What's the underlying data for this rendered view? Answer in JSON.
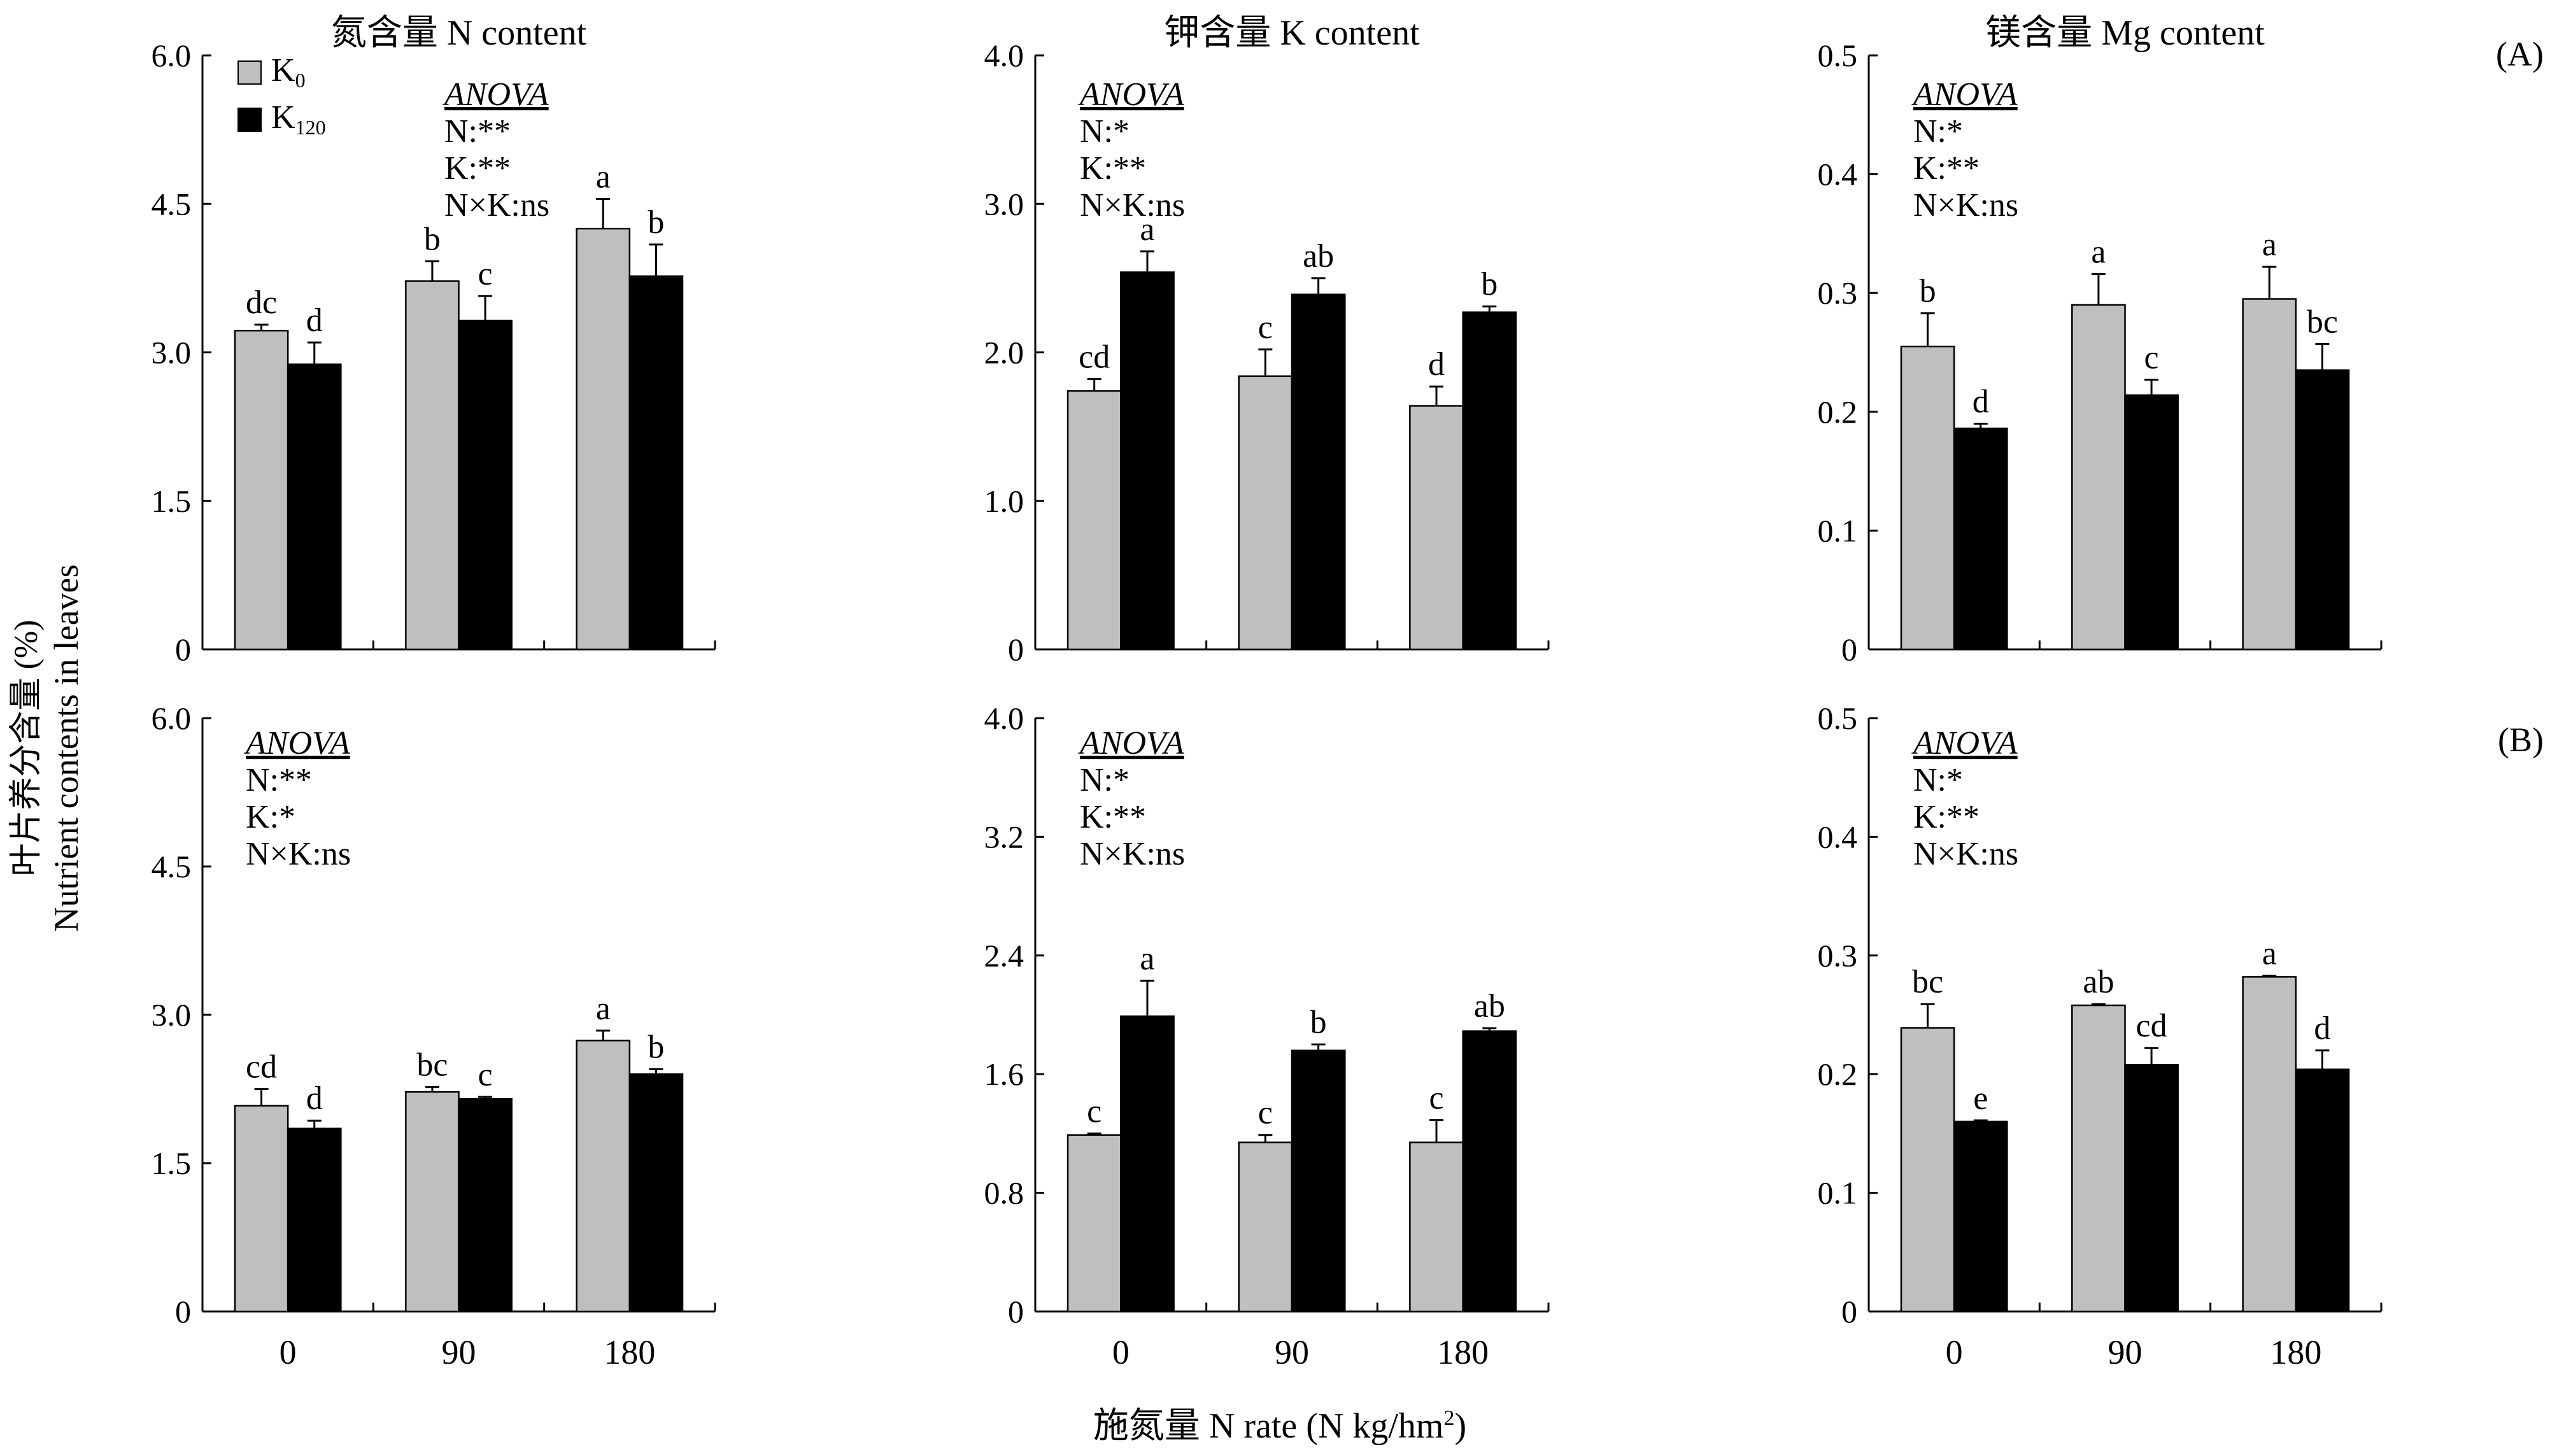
{
  "figure": {
    "ylabel_zh": "叶片养分含量 (%)",
    "ylabel_en": "Nutrient contents in leaves",
    "xlabel_pre": "施氮量 N rate (N kg/hm",
    "xlabel_sup": "2",
    "xlabel_post": ")",
    "legend": [
      {
        "name_base": "K",
        "name_sub": "0",
        "color": "#bfbfbf"
      },
      {
        "name_base": "K",
        "name_sub": "120",
        "color": "#000000"
      }
    ],
    "panel_tags": [
      "(A)",
      "(B)"
    ],
    "anova_title": "ANOVA"
  },
  "chart_data": [
    {
      "id": "A-N",
      "type": "bar",
      "title": "氮含量 N content",
      "ylim": [
        0,
        6.0
      ],
      "yticks": [
        0,
        1.5,
        3.0,
        4.5,
        6.0
      ],
      "ytick_labels": [
        "0",
        "1.5",
        "3.0",
        "4.5",
        "6.0"
      ],
      "categories": [
        "0",
        "90",
        "180"
      ],
      "xtick_labels": [],
      "series": [
        {
          "name": "K0",
          "values": [
            3.22,
            3.72,
            4.25
          ],
          "errors": [
            0.06,
            0.2,
            0.3
          ],
          "letters": [
            "dc",
            "b",
            "a"
          ]
        },
        {
          "name": "K120",
          "values": [
            2.88,
            3.32,
            3.77
          ],
          "errors": [
            0.22,
            0.25,
            0.32
          ],
          "letters": [
            "d",
            "c",
            "b"
          ]
        }
      ],
      "anova": [
        "N:**",
        "K:**",
        "N×K:ns"
      ]
    },
    {
      "id": "A-K",
      "type": "bar",
      "title": "钾含量 K content",
      "ylim": [
        0,
        4.0
      ],
      "yticks": [
        0,
        1.0,
        2.0,
        3.0,
        4.0
      ],
      "ytick_labels": [
        "0",
        "1.0",
        "2.0",
        "3.0",
        "4.0"
      ],
      "categories": [
        "0",
        "90",
        "180"
      ],
      "xtick_labels": [],
      "series": [
        {
          "name": "K0",
          "values": [
            1.74,
            1.84,
            1.64
          ],
          "errors": [
            0.08,
            0.18,
            0.13
          ],
          "letters": [
            "cd",
            "c",
            "d"
          ]
        },
        {
          "name": "K120",
          "values": [
            2.54,
            2.39,
            2.27
          ],
          "errors": [
            0.14,
            0.11,
            0.04
          ],
          "letters": [
            "a",
            "ab",
            "b"
          ]
        }
      ],
      "anova": [
        "N:*",
        "K:**",
        "N×K:ns"
      ]
    },
    {
      "id": "A-Mg",
      "type": "bar",
      "title": "镁含量 Mg content",
      "ylim": [
        0,
        0.5
      ],
      "yticks": [
        0,
        0.1,
        0.2,
        0.3,
        0.4,
        0.5
      ],
      "ytick_labels": [
        "0",
        "0.1",
        "0.2",
        "0.3",
        "0.4",
        "0.5"
      ],
      "categories": [
        "0",
        "90",
        "180"
      ],
      "xtick_labels": [],
      "series": [
        {
          "name": "K0",
          "values": [
            0.255,
            0.29,
            0.295
          ],
          "errors": [
            0.028,
            0.026,
            0.027
          ],
          "letters": [
            "b",
            "a",
            "a"
          ]
        },
        {
          "name": "K120",
          "values": [
            0.186,
            0.214,
            0.235
          ],
          "errors": [
            0.004,
            0.013,
            0.022
          ],
          "letters": [
            "d",
            "c",
            "bc"
          ]
        }
      ],
      "anova": [
        "N:*",
        "K:**",
        "N×K:ns"
      ]
    },
    {
      "id": "B-N",
      "type": "bar",
      "title": "",
      "ylim": [
        0,
        6.0
      ],
      "yticks": [
        0,
        1.5,
        3.0,
        4.5,
        6.0
      ],
      "ytick_labels": [
        "0",
        "1.5",
        "3.0",
        "4.5",
        "6.0"
      ],
      "categories": [
        "0",
        "90",
        "180"
      ],
      "xtick_labels": [
        "0",
        "90",
        "180"
      ],
      "series": [
        {
          "name": "K0",
          "values": [
            2.08,
            2.22,
            2.74
          ],
          "errors": [
            0.17,
            0.05,
            0.1
          ],
          "letters": [
            "cd",
            "bc",
            "a"
          ]
        },
        {
          "name": "K120",
          "values": [
            1.85,
            2.15,
            2.4
          ],
          "errors": [
            0.08,
            0.02,
            0.05
          ],
          "letters": [
            "d",
            "c",
            "b"
          ]
        }
      ],
      "anova": [
        "N:**",
        "K:*",
        "N×K:ns"
      ]
    },
    {
      "id": "B-K",
      "type": "bar",
      "title": "",
      "ylim": [
        0,
        4.0
      ],
      "yticks": [
        0,
        0.8,
        1.6,
        2.4,
        3.2,
        4.0
      ],
      "ytick_labels": [
        "0",
        "0.8",
        "1.6",
        "2.4",
        "3.2",
        "4.0"
      ],
      "categories": [
        "0",
        "90",
        "180"
      ],
      "xtick_labels": [
        "0",
        "90",
        "180"
      ],
      "series": [
        {
          "name": "K0",
          "values": [
            1.19,
            1.14,
            1.14
          ],
          "errors": [
            0.01,
            0.05,
            0.15
          ],
          "letters": [
            "c",
            "c",
            "c"
          ]
        },
        {
          "name": "K120",
          "values": [
            1.99,
            1.76,
            1.89
          ],
          "errors": [
            0.24,
            0.04,
            0.02
          ],
          "letters": [
            "a",
            "b",
            "ab"
          ]
        }
      ],
      "anova": [
        "N:*",
        "K:**",
        "N×K:ns"
      ]
    },
    {
      "id": "B-Mg",
      "type": "bar",
      "title": "",
      "ylim": [
        0,
        0.5
      ],
      "yticks": [
        0,
        0.1,
        0.2,
        0.3,
        0.4,
        0.5
      ],
      "ytick_labels": [
        "0",
        "0.1",
        "0.2",
        "0.3",
        "0.4",
        "0.5"
      ],
      "categories": [
        "0",
        "90",
        "180"
      ],
      "xtick_labels": [
        "0",
        "90",
        "180"
      ],
      "series": [
        {
          "name": "K0",
          "values": [
            0.239,
            0.258,
            0.282
          ],
          "errors": [
            0.02,
            0.001,
            0.001
          ],
          "letters": [
            "bc",
            "ab",
            "a"
          ]
        },
        {
          "name": "K120",
          "values": [
            0.16,
            0.208,
            0.204
          ],
          "errors": [
            0.001,
            0.014,
            0.016
          ],
          "letters": [
            "e",
            "cd",
            "d"
          ]
        }
      ],
      "anova": [
        "N:*",
        "K:**",
        "N×K:ns"
      ]
    }
  ]
}
